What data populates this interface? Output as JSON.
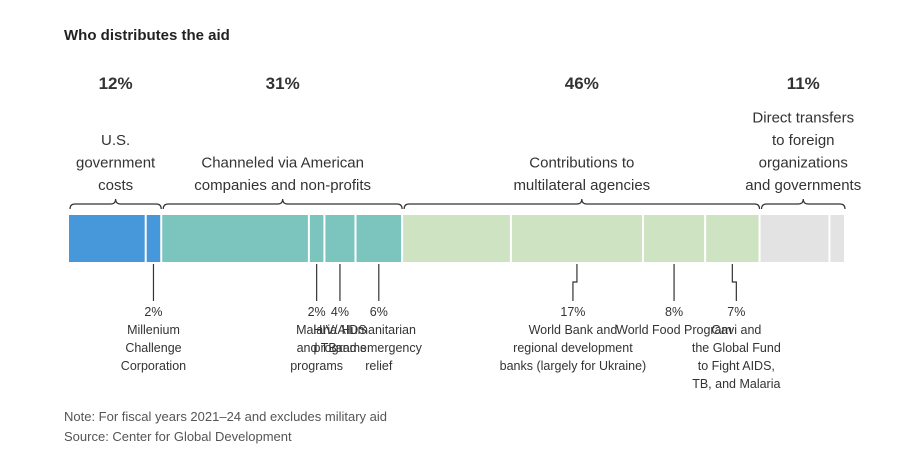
{
  "title": "Who distributes the aid",
  "note": "Note: For fiscal years 2021–24 and excludes military aid",
  "source": "Source: Center for Global Development",
  "chart_data": {
    "type": "bar",
    "orientation": "horizontal-stacked",
    "unit": "%",
    "groups": [
      {
        "percent_label": "12%",
        "value": 12,
        "label_lines": [
          "U.S.",
          "government",
          "costs"
        ],
        "color": "#4698db",
        "segments": [
          {
            "value": 10,
            "label_lines": []
          },
          {
            "value": 2,
            "label_lines": [
              "2%",
              "Millenium",
              "Challenge",
              "Corporation"
            ]
          }
        ]
      },
      {
        "percent_label": "31%",
        "value": 31,
        "label_lines": [
          "Channeled via American",
          "companies and non-profits"
        ],
        "color": "#7cc4be",
        "segments": [
          {
            "value": 19,
            "label_lines": []
          },
          {
            "value": 2,
            "label_lines": [
              "2%",
              "Malaria",
              "and TB",
              "programs"
            ]
          },
          {
            "value": 4,
            "label_lines": [
              "4%",
              "HIV/AIDS",
              "programs"
            ]
          },
          {
            "value": 6,
            "label_lines": [
              "6%",
              "Humanitarian",
              "and emergency",
              "relief"
            ]
          }
        ]
      },
      {
        "percent_label": "46%",
        "value": 46,
        "label_lines": [
          "Contributions to",
          "multilateral agencies"
        ],
        "color": "#cde3c2",
        "segments": [
          {
            "value": 14,
            "label_lines": []
          },
          {
            "value": 17,
            "label_lines": [
              "17%",
              "World Bank and",
              "regional development",
              "banks (largely for Ukraine)"
            ]
          },
          {
            "value": 8,
            "label_lines": [
              "8%",
              "World Food Program"
            ]
          },
          {
            "value": 7,
            "label_lines": [
              "7%",
              "Gavi and",
              "the Global Fund",
              "to Fight AIDS,",
              "TB, and Malaria"
            ]
          }
        ]
      },
      {
        "percent_label": "11%",
        "value": 11,
        "label_lines": [
          "Direct transfers",
          "to foreign",
          "organizations",
          "and governments"
        ],
        "color": "#e3e3e3",
        "segments": [
          {
            "value": 9,
            "label_lines": []
          },
          {
            "value": 2,
            "label_lines": []
          }
        ]
      }
    ]
  }
}
